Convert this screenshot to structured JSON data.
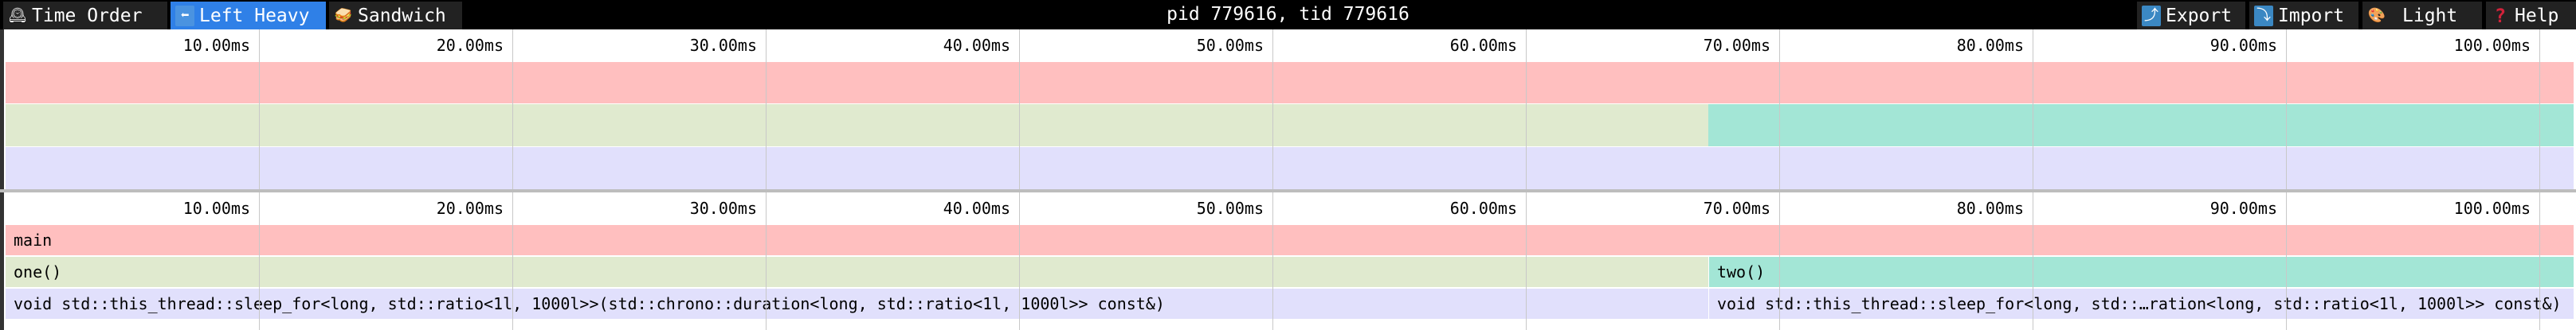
{
  "toolbar": {
    "tabs": [
      {
        "label": "Time Order",
        "icon": "mantel-clock-icon",
        "active": false
      },
      {
        "label": "Left Heavy",
        "icon": "left-arrow-icon",
        "active": true
      },
      {
        "label": "Sandwich",
        "icon": "sandwich-icon",
        "active": false
      }
    ],
    "title": "pid 779616, tid 779616",
    "actions": [
      {
        "label": "Export",
        "icon": "export-arrow-icon"
      },
      {
        "label": "Import",
        "icon": "import-arrow-icon"
      },
      {
        "label": "Light",
        "icon": "palette-icon"
      },
      {
        "label": "Help",
        "icon": "question-mark-icon"
      }
    ]
  },
  "time_axis": {
    "unit": "ms",
    "ticks": [
      "10.00ms",
      "20.00ms",
      "30.00ms",
      "40.00ms",
      "50.00ms",
      "60.00ms",
      "70.00ms",
      "80.00ms",
      "90.00ms",
      "100.00ms"
    ],
    "tick_values": [
      10,
      20,
      30,
      40,
      50,
      60,
      70,
      80,
      90,
      100
    ],
    "total_ms": 101.35
  },
  "frames": [
    {
      "name": "main",
      "depth": 0,
      "start_ms": 0,
      "end_ms": 101.35,
      "color": "#ffbfbf"
    },
    {
      "name": "one()",
      "depth": 1,
      "start_ms": 0,
      "end_ms": 67.2,
      "color": "#e0eacf"
    },
    {
      "name": "two()",
      "depth": 1,
      "start_ms": 67.2,
      "end_ms": 101.35,
      "color": "#a3e6d6"
    },
    {
      "name": "void std::this_thread::sleep_for<long, std::ratio<1l, 1000l>>(std::chrono::duration<long, std::ratio<1l, 1000l>> const&)",
      "depth": 2,
      "start_ms": 0,
      "end_ms": 67.2,
      "color": "#e1e0fc"
    },
    {
      "name": "void std::this_thread::sleep_for<long, std::…ration<long, std::ratio<1l, 1000l>> const&)",
      "depth": 2,
      "start_ms": 67.2,
      "end_ms": 101.35,
      "color": "#e1e0fc"
    }
  ],
  "colors": {
    "active_tab": "#2f80e7",
    "toolbar_bg": "#000000",
    "tab_bg": "#222222"
  }
}
